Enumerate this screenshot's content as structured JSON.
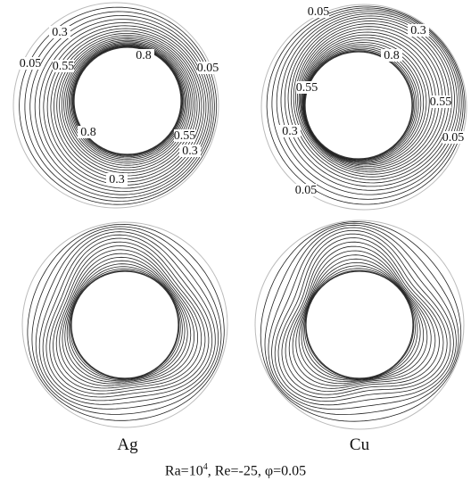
{
  "figure": {
    "panels": [
      {
        "id": "ag-isotherms",
        "kind": "isotherm",
        "labels": [
          "0.3",
          "0.05",
          "0.55",
          "0.8",
          "0.05",
          "0.8",
          "0.55",
          "0.3",
          "0.3"
        ]
      },
      {
        "id": "cu-isotherms",
        "kind": "isotherm",
        "labels": [
          "0.05",
          "0.3",
          "0.8",
          "0.55",
          "0.55",
          "0.05",
          "0.3",
          "0.05"
        ]
      },
      {
        "id": "ag-streamlines",
        "kind": "streamline",
        "column_label": "Ag"
      },
      {
        "id": "cu-streamlines",
        "kind": "streamline",
        "column_label": "Cu"
      }
    ],
    "caption": {
      "ra_prefix": "Ra=10",
      "ra_exponent": "4",
      "rest": ", Re=-25, φ=0.05"
    }
  }
}
